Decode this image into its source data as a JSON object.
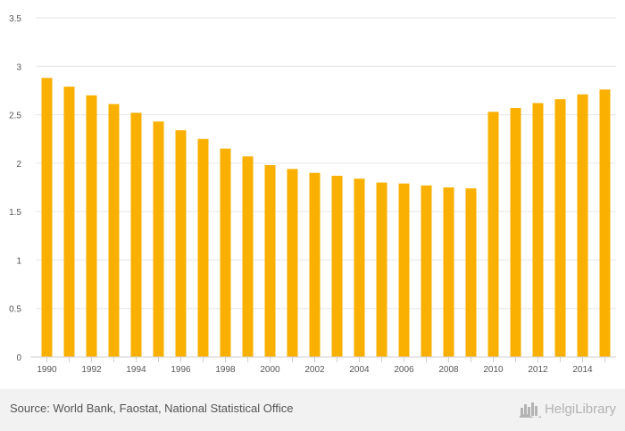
{
  "chart_data": {
    "type": "bar",
    "categories": [
      "1990",
      "1991",
      "1992",
      "1993",
      "1994",
      "1995",
      "1996",
      "1997",
      "1998",
      "1999",
      "2000",
      "2001",
      "2002",
      "2003",
      "2004",
      "2005",
      "2006",
      "2007",
      "2008",
      "2009",
      "2010",
      "2011",
      "2012",
      "2013",
      "2014",
      "2015"
    ],
    "values": [
      2.88,
      2.79,
      2.7,
      2.61,
      2.52,
      2.43,
      2.34,
      2.25,
      2.15,
      2.07,
      1.98,
      1.94,
      1.9,
      1.87,
      1.84,
      1.8,
      1.79,
      1.77,
      1.75,
      1.74,
      2.53,
      2.57,
      2.62,
      2.66,
      2.71,
      2.76
    ],
    "x_tick_labels": [
      "1990",
      "1992",
      "1994",
      "1996",
      "1998",
      "2000",
      "2002",
      "2004",
      "2006",
      "2008",
      "2010",
      "2012",
      "2014"
    ],
    "y_ticks": [
      0,
      0.5,
      1,
      1.5,
      2,
      2.5,
      3,
      3.5
    ],
    "y_tick_labels": [
      "0",
      "0.5",
      "1",
      "1.5",
      "2",
      "2.5",
      "3",
      "3.5"
    ],
    "ylim": [
      0,
      3.5
    ],
    "title": "",
    "xlabel": "",
    "ylabel": "",
    "grid": true,
    "legend": "none",
    "bar_color": "#f9b000",
    "grid_color": "#e6e6e6",
    "axis_color": "#cfcfcf",
    "tick_text_color": "#555555"
  },
  "footer": {
    "source": "Source: World Bank, Faostat, National Statistical Office",
    "brand": "HelgiLibrary",
    "brand_icon": "city-skyline-icon"
  }
}
